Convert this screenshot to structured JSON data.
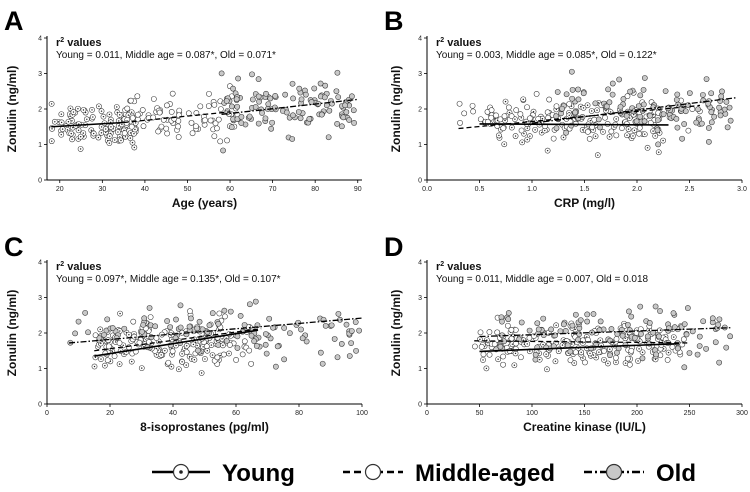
{
  "chart_data": [
    {
      "type": "scatter",
      "panel_label": "A",
      "ylabel": "Zonulin (ng/ml)",
      "xlabel": "Age (years)",
      "r2_title": "r",
      "r2_sup": "2",
      "r2_title_rest": " values",
      "r2_text": "Young = 0.011, Middle age = 0.087*, Old = 0.071*",
      "xlim": [
        17,
        91
      ],
      "ylim": [
        0,
        4
      ],
      "xticks": [
        20,
        30,
        40,
        50,
        60,
        70,
        80,
        90
      ],
      "yticks": [
        0,
        1,
        2,
        3,
        4
      ],
      "groups": [
        {
          "name": "Young",
          "x_range": [
            18,
            38
          ],
          "y_mean": 1.55,
          "y_sd": 0.28,
          "n": 110
        },
        {
          "name": "Middle-aged",
          "x_range": [
            35,
            62
          ],
          "y_mean": 1.78,
          "y_sd": 0.3,
          "n": 90
        },
        {
          "name": "Old",
          "x_range": [
            58,
            90
          ],
          "y_mean": 2.05,
          "y_sd": 0.35,
          "n": 120
        }
      ],
      "fits": [
        {
          "group": "Young",
          "x": [
            18,
            35
          ],
          "y": [
            1.5,
            1.62
          ]
        },
        {
          "group": "Middle-aged",
          "x": [
            35,
            60
          ],
          "y": [
            1.62,
            1.92
          ]
        },
        {
          "group": "Old",
          "x": [
            58,
            90
          ],
          "y": [
            1.85,
            2.27
          ]
        }
      ]
    },
    {
      "type": "scatter",
      "panel_label": "B",
      "ylabel": "Zonulin (ng/ml)",
      "xlabel": "CRP (mg/l)",
      "r2_title": "r",
      "r2_sup": "2",
      "r2_title_rest": " values",
      "r2_text": "Young = 0.003, Middle age = 0.085*, Old = 0.122*",
      "xlim": [
        0,
        3
      ],
      "ylim": [
        0,
        4
      ],
      "xticks": [
        "0.0",
        "0.5",
        "1.0",
        "1.5",
        "2.0",
        "2.5",
        "3.0"
      ],
      "yticks": [
        0,
        1,
        2,
        3,
        4
      ],
      "groups": [
        {
          "name": "Young",
          "x_range": [
            0.6,
            2.3
          ],
          "y_mean": 1.55,
          "y_sd": 0.3,
          "n": 110
        },
        {
          "name": "Middle-aged",
          "x_range": [
            0.3,
            2.6
          ],
          "y_mean": 1.75,
          "y_sd": 0.32,
          "n": 90
        },
        {
          "name": "Old",
          "x_range": [
            1.2,
            2.9
          ],
          "y_mean": 2.0,
          "y_sd": 0.35,
          "n": 120
        }
      ],
      "fits": [
        {
          "group": "Young",
          "x": [
            0.5,
            2.3
          ],
          "y": [
            1.58,
            1.55
          ]
        },
        {
          "group": "Middle-aged",
          "x": [
            0.3,
            2.6
          ],
          "y": [
            1.45,
            2.1
          ]
        },
        {
          "group": "Old",
          "x": [
            1.0,
            2.95
          ],
          "y": [
            1.6,
            2.32
          ]
        }
      ]
    },
    {
      "type": "scatter",
      "panel_label": "C",
      "ylabel": "Zonulin (ng/ml)",
      "xlabel": "8-isoprostanes (pg/ml)",
      "r2_title": "r",
      "r2_sup": "2",
      "r2_title_rest": " values",
      "r2_text": "Young = 0.097*, Middle age = 0.135*, Old = 0.107*",
      "xlim": [
        0,
        100
      ],
      "ylim": [
        0,
        4
      ],
      "xticks": [
        0,
        20,
        40,
        60,
        80,
        100
      ],
      "yticks": [
        0,
        1,
        2,
        3,
        4
      ],
      "groups": [
        {
          "name": "Young",
          "x_range": [
            15,
            60
          ],
          "y_mean": 1.6,
          "y_sd": 0.3,
          "n": 110
        },
        {
          "name": "Middle-aged",
          "x_range": [
            15,
            65
          ],
          "y_mean": 1.8,
          "y_sd": 0.32,
          "n": 90
        },
        {
          "name": "Old",
          "x_range": [
            7,
            100
          ],
          "y_mean": 2.05,
          "y_sd": 0.35,
          "n": 120
        }
      ],
      "fits": [
        {
          "group": "Young",
          "x": [
            15,
            67
          ],
          "y": [
            1.35,
            2.08
          ]
        },
        {
          "group": "Middle-aged",
          "x": [
            15,
            68
          ],
          "y": [
            1.5,
            2.12
          ]
        },
        {
          "group": "Old",
          "x": [
            7,
            100
          ],
          "y": [
            1.72,
            2.42
          ]
        }
      ]
    },
    {
      "type": "scatter",
      "panel_label": "D",
      "ylabel": "Zonulin (ng/ml)",
      "xlabel": "Creatine kinase (IU/L)",
      "r2_title": "r",
      "r2_sup": "2",
      "r2_title_rest": " values",
      "r2_text": "Young = 0.011, Middle age = 0.007, Old = 0.018",
      "xlim": [
        0,
        300
      ],
      "ylim": [
        0,
        4
      ],
      "xticks": [
        0,
        50,
        100,
        150,
        200,
        250,
        300
      ],
      "yticks": [
        0,
        1,
        2,
        3,
        4
      ],
      "groups": [
        {
          "name": "Young",
          "x_range": [
            50,
            240
          ],
          "y_mean": 1.55,
          "y_sd": 0.3,
          "n": 110
        },
        {
          "name": "Middle-aged",
          "x_range": [
            45,
            250
          ],
          "y_mean": 1.75,
          "y_sd": 0.32,
          "n": 90
        },
        {
          "name": "Old",
          "x_range": [
            60,
            290
          ],
          "y_mean": 1.95,
          "y_sd": 0.35,
          "n": 120
        }
      ],
      "fits": [
        {
          "group": "Young",
          "x": [
            50,
            240
          ],
          "y": [
            1.48,
            1.7
          ]
        },
        {
          "group": "Middle-aged",
          "x": [
            45,
            250
          ],
          "y": [
            1.78,
            1.72
          ]
        },
        {
          "group": "Old",
          "x": [
            50,
            290
          ],
          "y": [
            1.9,
            2.15
          ]
        }
      ]
    }
  ],
  "legend": {
    "items": [
      {
        "label": "Young",
        "marker": "dotted-circle",
        "line": "solid"
      },
      {
        "label": "Middle-aged",
        "marker": "open-circle",
        "line": "dashed"
      },
      {
        "label": "Old",
        "marker": "gray-circle",
        "line": "dash-dot"
      }
    ]
  },
  "colors": {
    "young_fill": "#ffffff",
    "middle_fill": "#ffffff",
    "old_fill": "#c8c8c8",
    "stroke": "#333333"
  }
}
